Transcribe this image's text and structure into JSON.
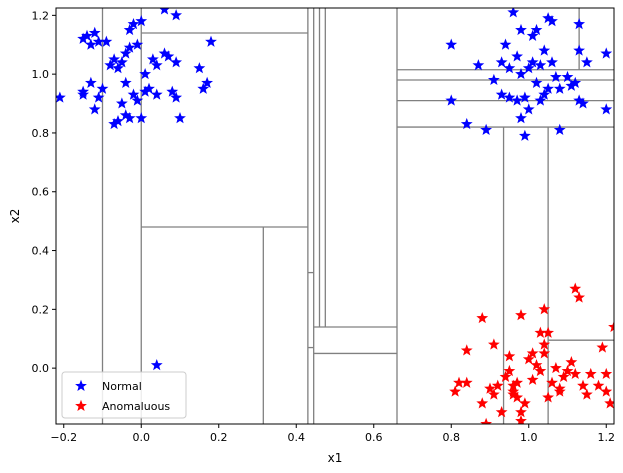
{
  "chart_data": {
    "type": "scatter",
    "title": "",
    "xlabel": "x1",
    "ylabel": "x2",
    "xlim": [
      -0.22,
      1.22
    ],
    "ylim": [
      -0.19,
      1.225
    ],
    "xticks": [
      -0.2,
      0.0,
      0.2,
      0.4,
      0.6,
      0.8,
      1.0,
      1.2
    ],
    "yticks": [
      0.0,
      0.2,
      0.4,
      0.6,
      0.8,
      1.0,
      1.2
    ],
    "xtick_labels": [
      "−0.2",
      "0.0",
      "0.2",
      "0.4",
      "0.6",
      "0.8",
      "1.0",
      "1.2"
    ],
    "ytick_labels": [
      "0.0",
      "0.2",
      "0.4",
      "0.6",
      "0.8",
      "1.0",
      "1.2"
    ],
    "grid": false,
    "legend_position": "lower-left",
    "split_color": "#808080",
    "splits": [
      {
        "orient": "v",
        "at": -0.1,
        "from": -0.19,
        "to": 1.225
      },
      {
        "orient": "v",
        "at": 0.0,
        "from": -0.19,
        "to": 1.225
      },
      {
        "orient": "h",
        "at": 1.14,
        "from": 0.0,
        "to": 0.43
      },
      {
        "orient": "h",
        "at": 0.48,
        "from": 0.0,
        "to": 0.43
      },
      {
        "orient": "v",
        "at": 0.315,
        "from": -0.19,
        "to": 0.48
      },
      {
        "orient": "v",
        "at": 0.43,
        "from": -0.19,
        "to": 1.225
      },
      {
        "orient": "v",
        "at": 0.445,
        "from": -0.19,
        "to": 1.225
      },
      {
        "orient": "h",
        "at": 0.325,
        "from": 0.43,
        "to": 0.445
      },
      {
        "orient": "h",
        "at": 0.07,
        "from": 0.43,
        "to": 0.445
      },
      {
        "orient": "v",
        "at": 0.46,
        "from": 0.14,
        "to": 1.225
      },
      {
        "orient": "v",
        "at": 0.475,
        "from": 0.14,
        "to": 1.225
      },
      {
        "orient": "h",
        "at": 0.14,
        "from": 0.445,
        "to": 0.66
      },
      {
        "orient": "h",
        "at": 0.05,
        "from": 0.445,
        "to": 0.66
      },
      {
        "orient": "v",
        "at": 0.66,
        "from": -0.19,
        "to": 1.225
      },
      {
        "orient": "h",
        "at": 1.015,
        "from": 0.66,
        "to": 1.22
      },
      {
        "orient": "h",
        "at": 0.98,
        "from": 0.66,
        "to": 1.22
      },
      {
        "orient": "h",
        "at": 0.91,
        "from": 0.66,
        "to": 1.22
      },
      {
        "orient": "h",
        "at": 0.82,
        "from": 0.66,
        "to": 1.22
      },
      {
        "orient": "v",
        "at": 0.935,
        "from": -0.19,
        "to": 0.82
      },
      {
        "orient": "v",
        "at": 1.05,
        "from": -0.19,
        "to": 0.82
      },
      {
        "orient": "h",
        "at": 0.095,
        "from": 1.05,
        "to": 1.22
      },
      {
        "orient": "v",
        "at": 1.13,
        "from": 1.015,
        "to": 1.225
      }
    ],
    "series": [
      {
        "name": "Normal",
        "color": "#0000ff",
        "marker": "star",
        "points": [
          [
            -0.21,
            0.92
          ],
          [
            -0.15,
            1.12
          ],
          [
            -0.14,
            1.13
          ],
          [
            -0.13,
            1.1
          ],
          [
            -0.12,
            1.14
          ],
          [
            -0.11,
            1.11
          ],
          [
            -0.15,
            0.94
          ],
          [
            -0.15,
            0.93
          ],
          [
            -0.13,
            0.97
          ],
          [
            -0.12,
            0.88
          ],
          [
            -0.11,
            0.92
          ],
          [
            -0.1,
            0.95
          ],
          [
            -0.09,
            1.11
          ],
          [
            -0.08,
            1.03
          ],
          [
            -0.07,
            1.05
          ],
          [
            -0.06,
            1.02
          ],
          [
            -0.05,
            1.04
          ],
          [
            -0.04,
            1.07
          ],
          [
            -0.03,
            1.09
          ],
          [
            -0.03,
            1.15
          ],
          [
            -0.02,
            1.17
          ],
          [
            -0.01,
            1.1
          ],
          [
            0.0,
            1.18
          ],
          [
            -0.06,
            0.84
          ],
          [
            -0.05,
            0.9
          ],
          [
            -0.04,
            0.86
          ],
          [
            -0.03,
            0.85
          ],
          [
            -0.02,
            0.93
          ],
          [
            -0.01,
            0.91
          ],
          [
            0.0,
            0.85
          ],
          [
            0.01,
            0.94
          ],
          [
            0.01,
            1.0
          ],
          [
            0.02,
            0.95
          ],
          [
            0.03,
            1.05
          ],
          [
            0.04,
            0.93
          ],
          [
            0.04,
            1.03
          ],
          [
            0.06,
            1.22
          ],
          [
            0.06,
            1.07
          ],
          [
            0.07,
            1.06
          ],
          [
            0.08,
            0.94
          ],
          [
            0.09,
            0.92
          ],
          [
            0.09,
            1.04
          ],
          [
            0.09,
            1.2
          ],
          [
            0.1,
            0.85
          ],
          [
            0.15,
            1.02
          ],
          [
            0.16,
            0.95
          ],
          [
            0.17,
            0.97
          ],
          [
            0.18,
            1.11
          ],
          [
            -0.04,
            0.97
          ],
          [
            -0.07,
            0.83
          ],
          [
            0.04,
            0.01
          ],
          [
            0.8,
            1.1
          ],
          [
            0.8,
            0.91
          ],
          [
            0.84,
            0.83
          ],
          [
            0.87,
            1.03
          ],
          [
            0.89,
            0.81
          ],
          [
            0.91,
            0.98
          ],
          [
            0.93,
            1.04
          ],
          [
            0.93,
            0.93
          ],
          [
            0.94,
            1.1
          ],
          [
            0.95,
            0.92
          ],
          [
            0.95,
            1.02
          ],
          [
            0.96,
            1.21
          ],
          [
            0.97,
            0.91
          ],
          [
            0.97,
            1.06
          ],
          [
            0.98,
            0.85
          ],
          [
            0.98,
            1.15
          ],
          [
            0.99,
            0.92
          ],
          [
            0.99,
            0.79
          ],
          [
            1.0,
            1.02
          ],
          [
            1.0,
            0.88
          ],
          [
            1.01,
            1.13
          ],
          [
            1.01,
            1.04
          ],
          [
            1.02,
            0.97
          ],
          [
            1.02,
            1.15
          ],
          [
            1.03,
            0.91
          ],
          [
            1.03,
            1.03
          ],
          [
            1.04,
            1.08
          ],
          [
            1.05,
            0.95
          ],
          [
            1.05,
            1.19
          ],
          [
            1.06,
            1.18
          ],
          [
            1.06,
            1.04
          ],
          [
            1.07,
            0.99
          ],
          [
            1.08,
            0.95
          ],
          [
            1.08,
            0.81
          ],
          [
            1.1,
            0.99
          ],
          [
            1.11,
            0.96
          ],
          [
            1.12,
            0.97
          ],
          [
            1.13,
            0.91
          ],
          [
            1.13,
            1.08
          ],
          [
            1.13,
            1.17
          ],
          [
            1.14,
            0.9
          ],
          [
            1.15,
            1.04
          ],
          [
            1.2,
            1.07
          ],
          [
            1.2,
            0.88
          ],
          [
            0.98,
            1.0
          ],
          [
            1.04,
            0.93
          ]
        ]
      },
      {
        "name": "Anomaluous",
        "color": "#ff0000",
        "marker": "star",
        "points": [
          [
            0.81,
            -0.08
          ],
          [
            0.82,
            -0.05
          ],
          [
            0.84,
            -0.05
          ],
          [
            0.84,
            0.06
          ],
          [
            0.88,
            0.17
          ],
          [
            0.88,
            -0.12
          ],
          [
            0.89,
            -0.19
          ],
          [
            0.9,
            -0.07
          ],
          [
            0.91,
            0.08
          ],
          [
            0.91,
            -0.09
          ],
          [
            0.92,
            -0.06
          ],
          [
            0.93,
            -0.15
          ],
          [
            0.94,
            -0.03
          ],
          [
            0.95,
            -0.01
          ],
          [
            0.95,
            0.04
          ],
          [
            0.96,
            -0.06
          ],
          [
            0.96,
            -0.08
          ],
          [
            0.97,
            -0.05
          ],
          [
            0.97,
            -0.1
          ],
          [
            0.98,
            -0.18
          ],
          [
            0.98,
            0.18
          ],
          [
            0.99,
            -0.12
          ],
          [
            1.0,
            0.03
          ],
          [
            1.01,
            0.05
          ],
          [
            1.01,
            -0.04
          ],
          [
            1.02,
            0.01
          ],
          [
            1.03,
            -0.01
          ],
          [
            1.03,
            0.12
          ],
          [
            1.04,
            0.2
          ],
          [
            1.04,
            0.08
          ],
          [
            1.04,
            0.05
          ],
          [
            1.05,
            -0.1
          ],
          [
            1.05,
            0.12
          ],
          [
            1.06,
            -0.05
          ],
          [
            1.07,
            0.0
          ],
          [
            1.08,
            -0.07
          ],
          [
            1.09,
            -0.03
          ],
          [
            1.1,
            -0.01
          ],
          [
            1.11,
            0.02
          ],
          [
            1.12,
            0.27
          ],
          [
            1.12,
            -0.02
          ],
          [
            1.13,
            0.24
          ],
          [
            1.14,
            -0.06
          ],
          [
            1.15,
            -0.09
          ],
          [
            1.16,
            -0.02
          ],
          [
            1.18,
            -0.06
          ],
          [
            1.19,
            0.07
          ],
          [
            1.2,
            -0.02
          ],
          [
            1.2,
            -0.08
          ],
          [
            1.21,
            -0.12
          ],
          [
            1.22,
            0.14
          ],
          [
            0.98,
            -0.15
          ],
          [
            1.08,
            -0.08
          ],
          [
            0.96,
            -0.09
          ]
        ]
      }
    ]
  }
}
